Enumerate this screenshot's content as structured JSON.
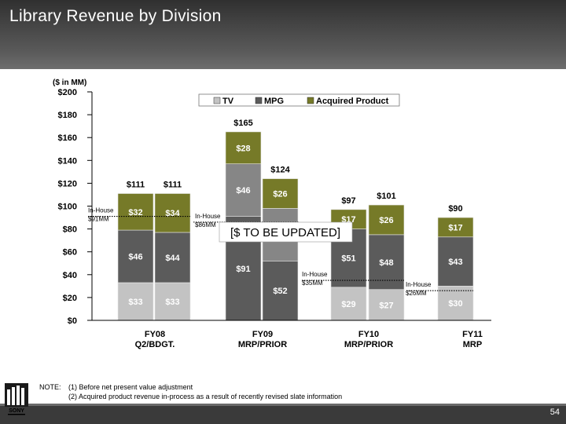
{
  "title": "Library Revenue by Division",
  "page_number": "54",
  "logo": {
    "icon": "sony-pictures-logo",
    "text": "SONY"
  },
  "notes": {
    "label": "NOTE:",
    "lines": [
      "(1) Before net present value adjustment",
      "(2) Acquired product revenue in-process as a result of recently revised slate information"
    ]
  },
  "overlay_label": "[$ TO BE UPDATED]",
  "chart_data": {
    "type": "bar",
    "stacked": true,
    "unit_label": "($ in MM)",
    "ylim": [
      0,
      200
    ],
    "yticks": [
      0,
      20,
      40,
      60,
      80,
      100,
      120,
      140,
      160,
      180,
      200
    ],
    "ytick_labels": [
      "$0",
      "$20",
      "$40",
      "$60",
      "$80",
      "$100",
      "$120",
      "$140",
      "$160",
      "$180",
      "$200"
    ],
    "legend": {
      "placement": "top-right",
      "entries": [
        "TV",
        "MPG",
        "Acquired Product"
      ]
    },
    "colors": {
      "TV": "#c3c3c3",
      "MPG": "#5b5b5b",
      "Acquired Product": "#767a28",
      "MPG_light": "#868686"
    },
    "groups": [
      {
        "label_lines": [
          "FY08",
          "Q2/BDGT."
        ],
        "bars": [
          {
            "stack": [
              33,
              46,
              32
            ],
            "labels": [
              "$33",
              "$46",
              "$32"
            ],
            "total": 111,
            "total_label": "$111"
          },
          {
            "stack": [
              33,
              44,
              34
            ],
            "labels": [
              "$33",
              "$44",
              "$34"
            ],
            "total": 111,
            "total_label": "$111"
          }
        ],
        "inhouse": {
          "value": 91,
          "lines": [
            "In-House",
            "$91MM"
          ]
        }
      },
      {
        "label_lines": [
          "FY09",
          "MRP/PRIOR"
        ],
        "bars": [
          {
            "stack": [
              0,
              91,
              46,
              28
            ],
            "labels": [
              "",
              "$91",
              "$46",
              "$28"
            ],
            "total": 165,
            "total_label": "$165"
          },
          {
            "stack": [
              0,
              52,
              46,
              26
            ],
            "labels": [
              "",
              "$52",
              "$46",
              "$26"
            ],
            "total": 124,
            "total_label": "$124"
          }
        ],
        "inhouse": {
          "value": 86,
          "lines": [
            "In-House",
            "$86MM"
          ]
        }
      },
      {
        "label_lines": [
          "FY10",
          "MRP/PRIOR"
        ],
        "bars": [
          {
            "stack": [
              29,
              51,
              17
            ],
            "labels": [
              "$29",
              "$51",
              "$17"
            ],
            "total": 97,
            "total_label": "$97"
          },
          {
            "stack": [
              27,
              48,
              26
            ],
            "labels": [
              "$27",
              "$48",
              "$26"
            ],
            "total": 101,
            "total_label": "$101"
          }
        ],
        "inhouse": {
          "value": 35,
          "lines": [
            "In-House",
            "$35MM"
          ]
        }
      },
      {
        "label_lines": [
          "FY11",
          "MRP"
        ],
        "bars": [
          {
            "stack": [
              30,
              43,
              17
            ],
            "labels": [
              "$30",
              "$43",
              "$17"
            ],
            "total": 90,
            "total_label": "$90"
          }
        ],
        "inhouse": {
          "value": 26,
          "lines": [
            "In-House",
            "$26MM"
          ]
        }
      }
    ]
  }
}
